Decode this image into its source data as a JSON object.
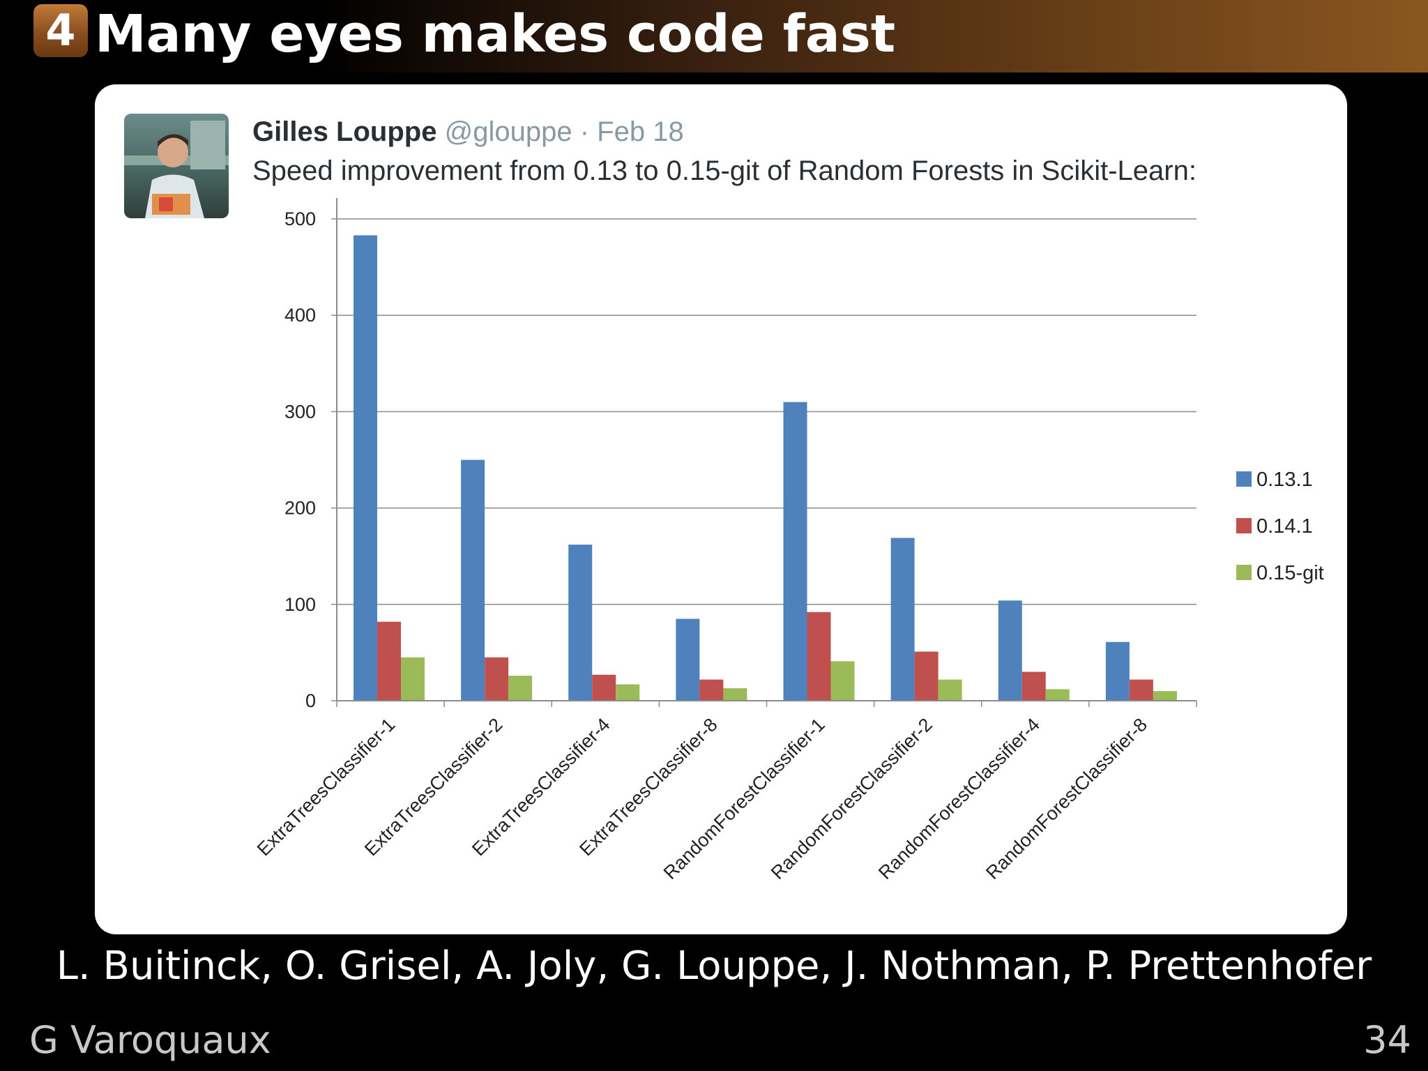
{
  "header": {
    "section_number": "4",
    "title": "Many eyes makes code fast"
  },
  "tweet": {
    "author": "Gilles Louppe",
    "handle": "@glouppe",
    "separator": "·",
    "date": "Feb 18",
    "text": "Speed improvement from 0.13 to 0.15-git of Random Forests in Scikit-Learn:"
  },
  "chart_data": {
    "type": "bar",
    "categories": [
      "ExtraTreesClassifier-1",
      "ExtraTreesClassifier-2",
      "ExtraTreesClassifier-4",
      "ExtraTreesClassifier-8",
      "RandomForestClassifier-1",
      "RandomForestClassifier-2",
      "RandomForestClassifier-4",
      "RandomForestClassifier-8"
    ],
    "series": [
      {
        "name": "0.13.1",
        "color": "#4f81bd",
        "values": [
          483,
          250,
          162,
          85,
          310,
          169,
          104,
          61
        ]
      },
      {
        "name": "0.14.1",
        "color": "#c0504d",
        "values": [
          82,
          45,
          27,
          22,
          92,
          51,
          30,
          22
        ]
      },
      {
        "name": "0.15-git",
        "color": "#9bbb59",
        "values": [
          45,
          26,
          17,
          13,
          41,
          22,
          12,
          10
        ]
      }
    ],
    "yticks": [
      "0",
      "100",
      "200",
      "300",
      "400",
      "500"
    ],
    "ylim": [
      0,
      500
    ],
    "grid": true,
    "legend_position": "right"
  },
  "footer": {
    "authors": "L. Buitinck, O. Grisel, A. Joly, G. Louppe, J. Nothman, P. Prettenhofer",
    "presenter": "G Varoquaux",
    "page_number": "34"
  }
}
